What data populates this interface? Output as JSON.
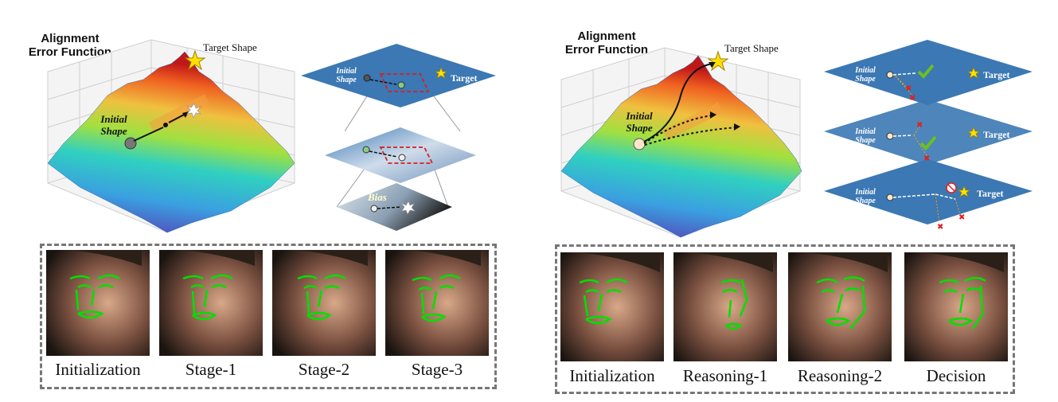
{
  "left": {
    "title_line1": "Alignment",
    "title_line2": "Error Function",
    "target_shape": "Target Shape",
    "initial_line1": "Initial",
    "initial_line2": "Shape",
    "planes": {
      "initial_line1": "Initial",
      "initial_line2": "Shape",
      "target": "Target",
      "bias": "Bias"
    },
    "captions": [
      "Initialization",
      "Stage-1",
      "Stage-2",
      "Stage-3"
    ]
  },
  "right": {
    "title_line1": "Alignment",
    "title_line2": "Error Function",
    "target_shape": "Target Shape",
    "initial_line1": "Initial",
    "initial_line2": "Shape",
    "planes": {
      "initial_line1": "Initial",
      "initial_line2": "Shape",
      "target": "Target"
    },
    "captions": [
      "Initialization",
      "Reasoning-1",
      "Reasoning-2",
      "Decision"
    ]
  },
  "colors": {
    "plane_blue": "#3b78b4",
    "landmark_green": "#00e000",
    "dashed_red": "#d62020",
    "star_yellow": "#ffe000",
    "box_border": "#777777"
  }
}
